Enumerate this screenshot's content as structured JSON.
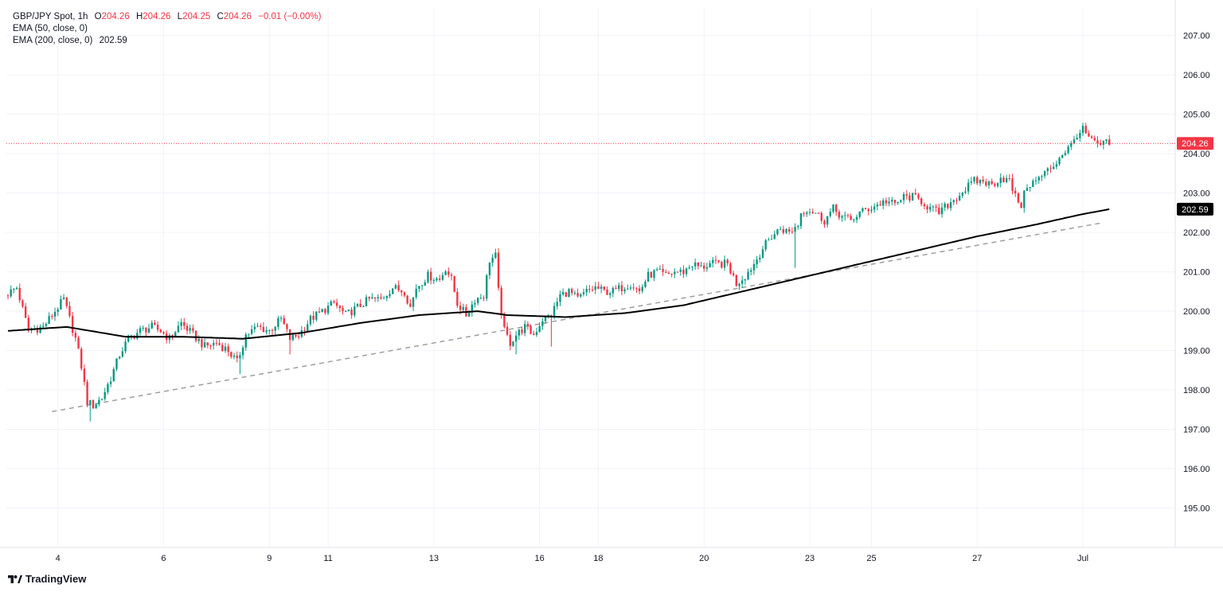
{
  "header": {
    "symbol": "GBP/JPY Spot, 1h",
    "open_label": "O",
    "open": "204.26",
    "high_label": "H",
    "high": "204.26",
    "low_label": "L",
    "low": "204.25",
    "close_label": "C",
    "close": "204.26",
    "change": "−0.01 (−0.00%)",
    "ema50_label": "EMA (50, close, 0)",
    "ema200_label": "EMA (200, close, 0)",
    "ema200_value": "202.59"
  },
  "brand": {
    "name": "TradingView",
    "icon": "tradingview-logo-icon"
  },
  "colors": {
    "up": "#089981",
    "down": "#f23645",
    "ema200": "#000000",
    "trendline": "#9e9e9e",
    "price_line": "#f23645",
    "grid": "#f0f3fa",
    "axis_text": "#131722"
  },
  "chart_data": {
    "type": "candlestick",
    "title": "GBP/JPY Spot, 1h",
    "interval": "1h",
    "ylim": [
      194.0,
      207.7
    ],
    "y_ticks": [
      "195.00",
      "196.00",
      "197.00",
      "198.00",
      "199.00",
      "200.00",
      "201.00",
      "202.00",
      "203.00",
      "204.00",
      "205.00",
      "206.00",
      "207.00"
    ],
    "x_ticks": [
      {
        "label": "4",
        "i": 17
      },
      {
        "label": "6",
        "i": 53
      },
      {
        "label": "9",
        "i": 89
      },
      {
        "label": "11",
        "i": 109
      },
      {
        "label": "13",
        "i": 145
      },
      {
        "label": "16",
        "i": 181
      },
      {
        "label": "18",
        "i": 201
      },
      {
        "label": "20",
        "i": 237
      },
      {
        "label": "23",
        "i": 273
      },
      {
        "label": "25",
        "i": 294
      },
      {
        "label": "27",
        "i": 330
      },
      {
        "label": "Jul",
        "i": 366
      }
    ],
    "bar_count": 380,
    "price_path": [
      [
        0,
        200.4
      ],
      [
        4,
        200.6
      ],
      [
        8,
        199.5
      ],
      [
        13,
        199.6
      ],
      [
        16,
        199.9
      ],
      [
        20,
        200.3
      ],
      [
        22,
        199.8
      ],
      [
        24,
        199.3
      ],
      [
        26,
        198.6
      ],
      [
        28,
        197.7
      ],
      [
        30,
        197.6
      ],
      [
        33,
        197.8
      ],
      [
        36,
        198.3
      ],
      [
        39,
        198.9
      ],
      [
        42,
        199.3
      ],
      [
        46,
        199.5
      ],
      [
        50,
        199.6
      ],
      [
        53,
        199.5
      ],
      [
        56,
        199.3
      ],
      [
        60,
        199.7
      ],
      [
        64,
        199.4
      ],
      [
        68,
        199.1
      ],
      [
        72,
        199.2
      ],
      [
        76,
        199.0
      ],
      [
        79,
        198.7
      ],
      [
        82,
        199.4
      ],
      [
        86,
        199.6
      ],
      [
        90,
        199.5
      ],
      [
        94,
        199.8
      ],
      [
        97,
        199.3
      ],
      [
        100,
        199.4
      ],
      [
        104,
        199.8
      ],
      [
        108,
        200.0
      ],
      [
        112,
        200.2
      ],
      [
        116,
        199.9
      ],
      [
        120,
        200.1
      ],
      [
        124,
        200.3
      ],
      [
        128,
        200.3
      ],
      [
        132,
        200.6
      ],
      [
        136,
        200.5
      ],
      [
        138,
        200.1
      ],
      [
        140,
        200.6
      ],
      [
        144,
        200.9
      ],
      [
        148,
        200.8
      ],
      [
        150,
        201.1
      ],
      [
        152,
        200.8
      ],
      [
        154,
        200.2
      ],
      [
        157,
        199.9
      ],
      [
        160,
        200.3
      ],
      [
        163,
        200.4
      ],
      [
        165,
        201.3
      ],
      [
        167,
        201.4
      ],
      [
        168,
        200.5
      ],
      [
        170,
        199.5
      ],
      [
        172,
        199.2
      ],
      [
        174,
        199.4
      ],
      [
        177,
        199.6
      ],
      [
        180,
        199.4
      ],
      [
        183,
        199.8
      ],
      [
        186,
        199.9
      ],
      [
        189,
        200.4
      ],
      [
        192,
        200.5
      ],
      [
        195,
        200.3
      ],
      [
        198,
        200.5
      ],
      [
        201,
        200.6
      ],
      [
        204,
        200.5
      ],
      [
        207,
        200.5
      ],
      [
        210,
        200.6
      ],
      [
        213,
        200.7
      ],
      [
        216,
        200.5
      ],
      [
        219,
        200.9
      ],
      [
        222,
        201.0
      ],
      [
        225,
        200.9
      ],
      [
        228,
        201.0
      ],
      [
        231,
        201.0
      ],
      [
        234,
        201.2
      ],
      [
        237,
        201.1
      ],
      [
        240,
        201.2
      ],
      [
        243,
        201.2
      ],
      [
        246,
        201.2
      ],
      [
        249,
        200.7
      ],
      [
        252,
        200.9
      ],
      [
        255,
        201.2
      ],
      [
        258,
        201.6
      ],
      [
        261,
        201.9
      ],
      [
        264,
        202.1
      ],
      [
        267,
        202.0
      ],
      [
        270,
        202.2
      ],
      [
        271,
        202.5
      ],
      [
        273,
        202.6
      ],
      [
        276,
        202.5
      ],
      [
        279,
        202.3
      ],
      [
        282,
        202.6
      ],
      [
        285,
        202.4
      ],
      [
        288,
        202.3
      ],
      [
        291,
        202.5
      ],
      [
        294,
        202.6
      ],
      [
        297,
        202.7
      ],
      [
        300,
        202.8
      ],
      [
        303,
        202.7
      ],
      [
        306,
        202.9
      ],
      [
        309,
        202.9
      ],
      [
        312,
        202.8
      ],
      [
        315,
        202.6
      ],
      [
        318,
        202.5
      ],
      [
        321,
        202.7
      ],
      [
        324,
        202.9
      ],
      [
        327,
        203.1
      ],
      [
        330,
        203.3
      ],
      [
        333,
        203.3
      ],
      [
        336,
        203.2
      ],
      [
        339,
        203.4
      ],
      [
        342,
        203.3
      ],
      [
        344,
        202.9
      ],
      [
        346,
        202.7
      ],
      [
        348,
        203.2
      ],
      [
        351,
        203.3
      ],
      [
        354,
        203.5
      ],
      [
        357,
        203.7
      ],
      [
        360,
        204.0
      ],
      [
        363,
        204.2
      ],
      [
        365,
        204.5
      ],
      [
        367,
        204.6
      ],
      [
        369,
        204.4
      ],
      [
        371,
        204.25
      ],
      [
        373,
        204.22
      ],
      [
        375,
        204.26
      ]
    ],
    "wicks": [
      {
        "i": 28,
        "low": 197.2
      },
      {
        "i": 79,
        "low": 198.4
      },
      {
        "i": 96,
        "low": 198.9
      },
      {
        "i": 167,
        "high": 201.6
      },
      {
        "i": 173,
        "low": 198.9
      },
      {
        "i": 185,
        "low": 199.1
      },
      {
        "i": 249,
        "low": 200.6
      },
      {
        "i": 268,
        "low": 201.1
      },
      {
        "i": 346,
        "low": 202.5
      },
      {
        "i": 367,
        "high": 204.75
      }
    ],
    "ema200": [
      [
        0,
        199.5
      ],
      [
        20,
        199.6
      ],
      [
        40,
        199.35
      ],
      [
        60,
        199.35
      ],
      [
        80,
        199.3
      ],
      [
        100,
        199.45
      ],
      [
        120,
        199.7
      ],
      [
        140,
        199.9
      ],
      [
        160,
        200.0
      ],
      [
        170,
        199.9
      ],
      [
        190,
        199.85
      ],
      [
        210,
        199.95
      ],
      [
        230,
        200.15
      ],
      [
        250,
        200.5
      ],
      [
        270,
        200.85
      ],
      [
        290,
        201.2
      ],
      [
        310,
        201.55
      ],
      [
        330,
        201.9
      ],
      [
        350,
        202.2
      ],
      [
        365,
        202.45
      ],
      [
        375,
        202.59
      ]
    ],
    "trendline": {
      "from": [
        15,
        197.45
      ],
      "to": [
        373,
        202.25
      ]
    },
    "last_price": {
      "value": "204.26"
    },
    "ema200_last": {
      "value": "202.59"
    }
  }
}
